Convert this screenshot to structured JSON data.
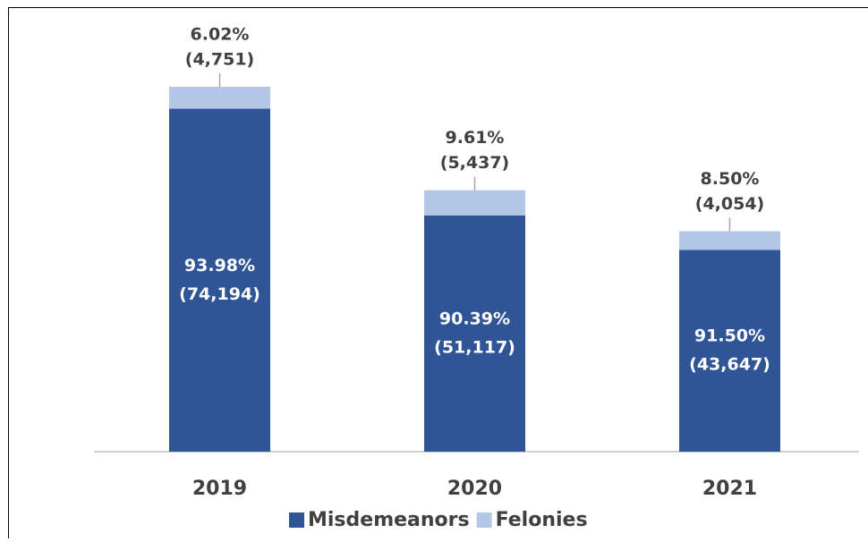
{
  "chart_data": {
    "type": "stacked_bar",
    "categories": [
      "2019",
      "2020",
      "2021"
    ],
    "series": [
      {
        "name": "Misdemeanors",
        "color": "#2f5597",
        "values": [
          74194,
          51117,
          43647
        ],
        "value_labels": [
          "(74,194)",
          "(51,117)",
          "(43,647)"
        ],
        "percent_labels": [
          "93.98%",
          "90.39%",
          "91.50%"
        ]
      },
      {
        "name": "Felonies",
        "color": "#b4c7e7",
        "values": [
          4751,
          5437,
          4054
        ],
        "value_labels": [
          "(4,751)",
          "(5,437)",
          "(4,054)"
        ],
        "percent_labels": [
          "6.02%",
          "9.61%",
          "8.50%"
        ]
      }
    ],
    "ylim": [
      0,
      95000
    ],
    "legend": "bottom"
  }
}
